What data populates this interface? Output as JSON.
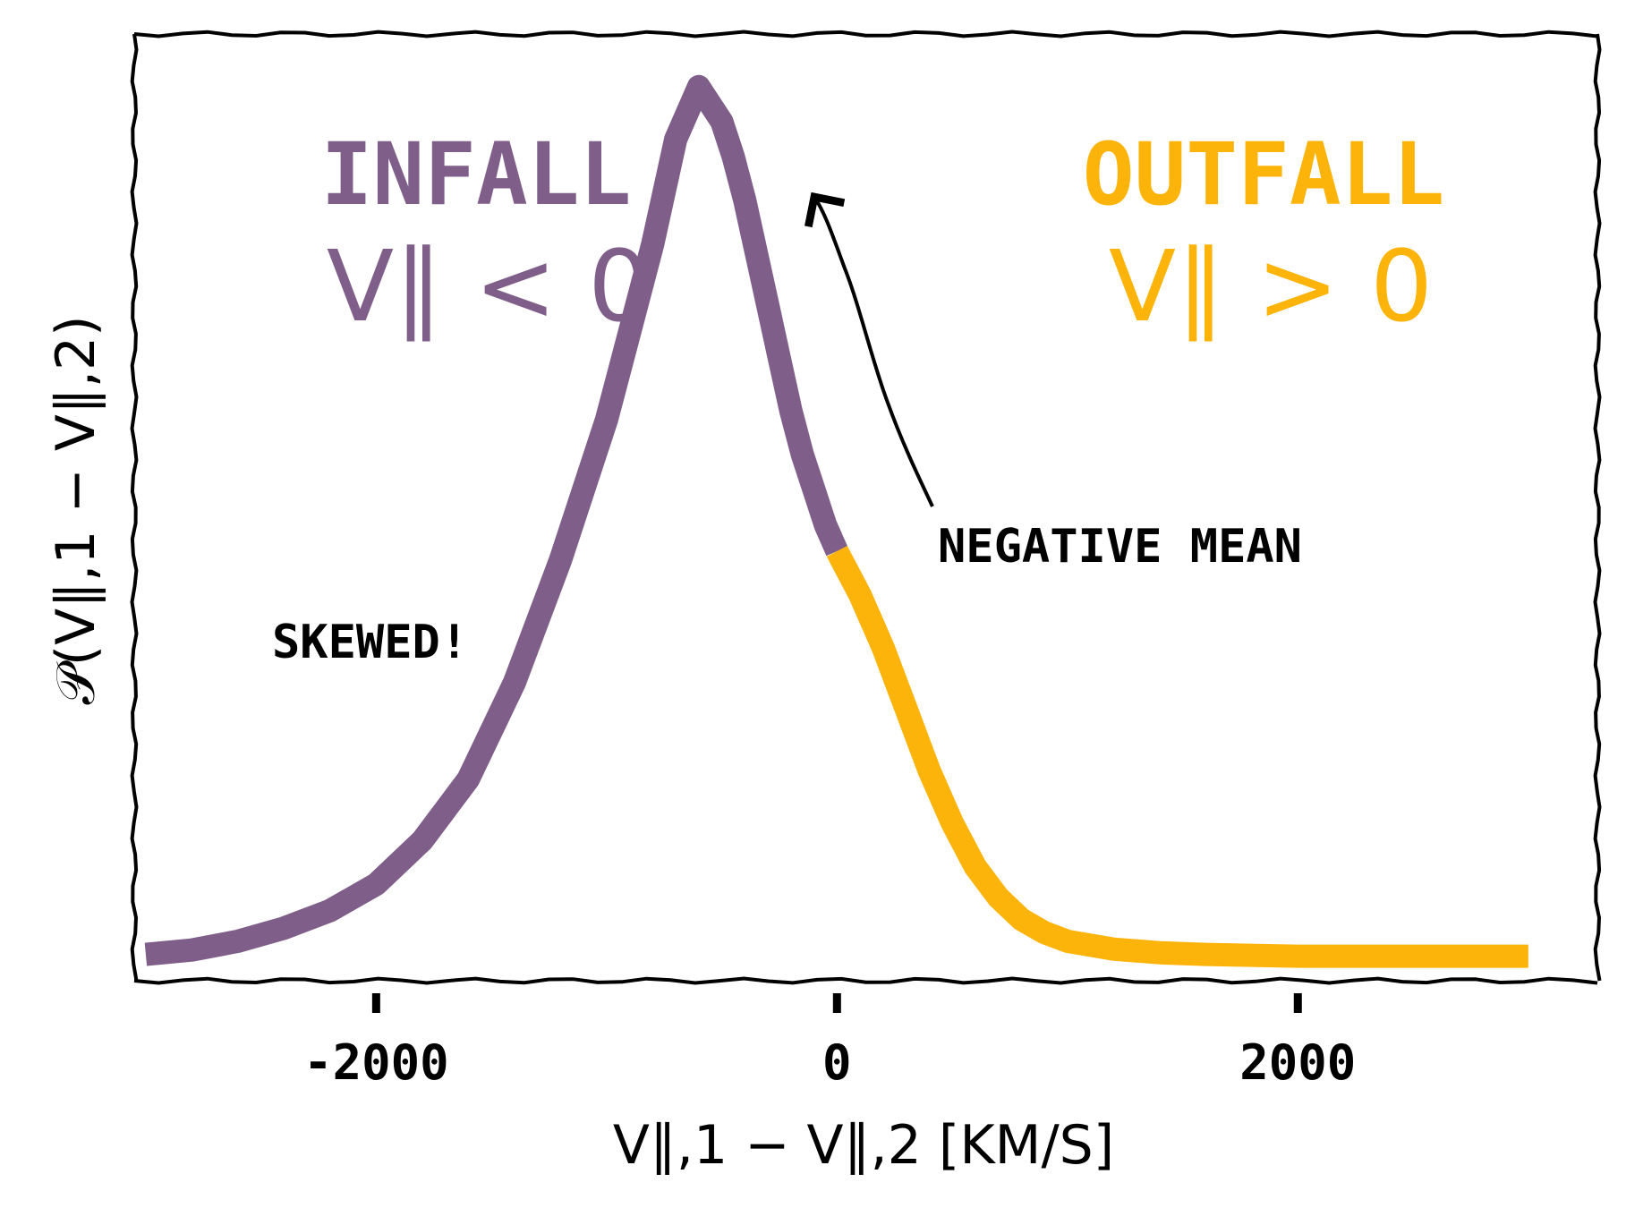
{
  "colors": {
    "infall": "#7f5e89",
    "outfall": "#fdb40a",
    "axis": "#000000",
    "background": "#ffffff"
  },
  "labels": {
    "infall_title": "INFALL",
    "infall_condition": "V∥ < 0",
    "outfall_title": "OUTFALL",
    "outfall_condition": "V∥ > 0",
    "annotation_skewed": "SKEWED!",
    "annotation_mean": "NEGATIVE MEAN",
    "xlabel": "V∥,1 − V∥,2 [KM/S]",
    "ylabel": "𝒫(V∥,1 − V∥,2)"
  },
  "chart_data": {
    "type": "line",
    "title": "",
    "xlabel": "V∥,1 − V∥,2 [KM/S]",
    "ylabel": "𝒫(V∥,1 − V∥,2)",
    "xlim": [
      -3050,
      3300
    ],
    "ylim": [
      -0.02,
      1.06
    ],
    "xticks": [
      -2000,
      0,
      2000
    ],
    "xtick_labels": [
      "-2000",
      "0",
      "2000"
    ],
    "grid": false,
    "legend": "none",
    "series": [
      {
        "name": "INFALL",
        "color": "#7f5e89",
        "x": [
          -3000,
          -2800,
          -2600,
          -2400,
          -2200,
          -2000,
          -1800,
          -1600,
          -1400,
          -1200,
          -1000,
          -900,
          -800,
          -700,
          -600,
          -500,
          -450,
          -400,
          -350,
          -300,
          -250,
          -200,
          -150,
          -100,
          -50,
          0
        ],
        "y": [
          0.01,
          0.015,
          0.025,
          0.04,
          0.06,
          0.09,
          0.14,
          0.21,
          0.32,
          0.46,
          0.62,
          0.72,
          0.82,
          0.94,
          1.0,
          0.96,
          0.92,
          0.87,
          0.81,
          0.75,
          0.69,
          0.63,
          0.58,
          0.54,
          0.5,
          0.47
        ]
      },
      {
        "name": "OUTFALL",
        "color": "#fdb40a",
        "x": [
          0,
          100,
          200,
          300,
          400,
          500,
          600,
          700,
          800,
          900,
          1000,
          1200,
          1400,
          1600,
          2000,
          2400,
          2800,
          3000
        ],
        "y": [
          0.47,
          0.42,
          0.36,
          0.29,
          0.22,
          0.16,
          0.11,
          0.075,
          0.05,
          0.035,
          0.025,
          0.016,
          0.012,
          0.01,
          0.008,
          0.008,
          0.008,
          0.008
        ]
      }
    ],
    "annotations": [
      {
        "text": "SKEWED!",
        "x": -2700,
        "y": 0.3
      },
      {
        "text": "NEGATIVE MEAN",
        "x": 350,
        "y": 0.39,
        "arrow_to": [
          -250,
          0.82
        ]
      }
    ]
  }
}
